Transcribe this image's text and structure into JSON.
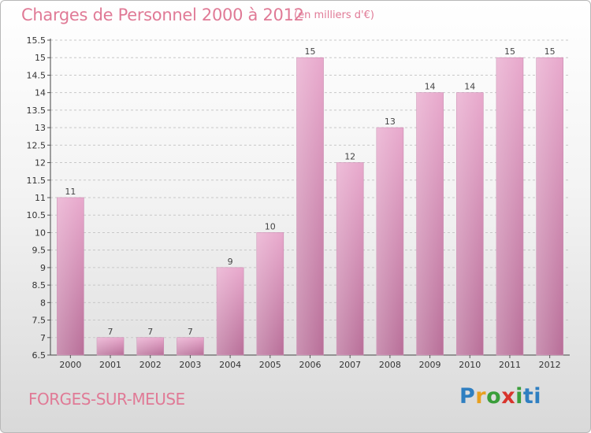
{
  "header": {
    "title": "Charges de Personnel 2000 à 2012",
    "subtitle": "(en milliers d'€)"
  },
  "footer": {
    "city": "FORGES-SUR-MEUSE",
    "logo_text": "Proxiti"
  },
  "colors": {
    "accent": "#e07a96",
    "bar_light": "#e8a8cc",
    "bar_dark": "#b86e98"
  },
  "chart_data": {
    "type": "bar",
    "categories": [
      "2000",
      "2001",
      "2002",
      "2003",
      "2004",
      "2005",
      "2006",
      "2007",
      "2008",
      "2009",
      "2010",
      "2011",
      "2012"
    ],
    "values": [
      11,
      7,
      7,
      7,
      9,
      10,
      15,
      12,
      13,
      14,
      14,
      15,
      15
    ],
    "title": "Charges de Personnel 2000 à 2012",
    "subtitle": "(en milliers d'€)",
    "xlabel": "",
    "ylabel": "",
    "ylim": [
      6.5,
      15.5
    ],
    "yticks": [
      6.5,
      7,
      7.5,
      8,
      8.5,
      9,
      9.5,
      10,
      10.5,
      11,
      11.5,
      12,
      12.5,
      13,
      13.5,
      14,
      14.5,
      15,
      15.5
    ],
    "grid": "horizontal dashed",
    "legend": "none"
  }
}
